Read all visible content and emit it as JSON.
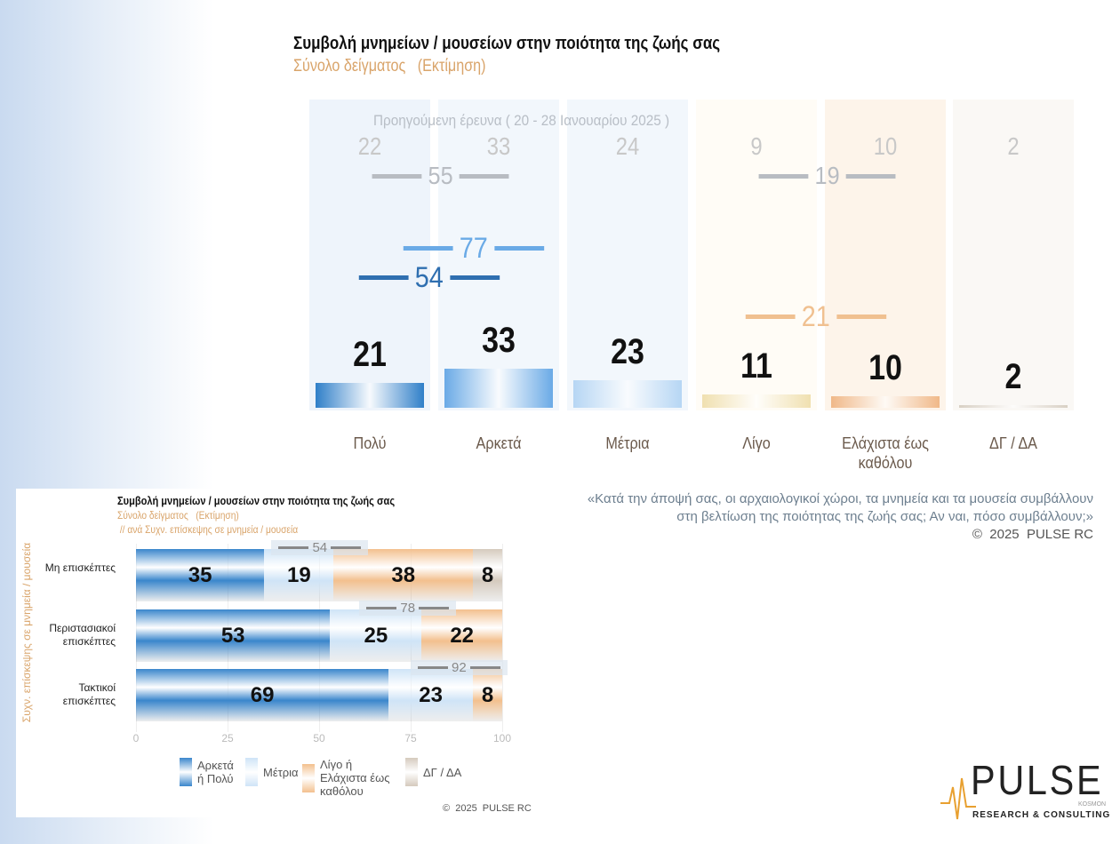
{
  "top_chart": {
    "title": "Συμβολή μνημείων / μουσείων στην ποιότητα της ζωής σας",
    "subtitle": "Σύνολο δείγματος   (Εκτίμηση)",
    "previous_label": "Προηγούμενη έρευνα ( 20 - 28 Ιανουαρίου 2025 )"
  },
  "question": {
    "line1": "«Κατά την άποψή σας, οι αρχαιολογικοί χώροι, τα μνημεία και τα μουσεία συμβάλλουν",
    "line2": "στη βελτίωση της ποιότητας της ζωής σας; Αν ναι, πόσο συμβάλλουν;»",
    "copyright": "©  2025  PULSE RC"
  },
  "bottom_chart": {
    "title": "Συμβολή μνημείων / μουσείων στην ποιότητα της ζωής σας",
    "subtitle": "Σύνολο δείγματος   (Εκτίμηση)",
    "subtitle2": " // ανά Συχν. επίσκεψης σε μνημεία / μουσεία",
    "ylabel": "Συχν. επίσκεψης σε μνημεία / μουσεία",
    "copyright": "©  2025  PULSE RC"
  },
  "logo": {
    "text": "PULSE",
    "sub": "RESEARCH & CONSULTING",
    "tag": "KOSMON"
  },
  "chart_data": [
    {
      "type": "bar",
      "title": "Συμβολή μνημείων / μουσείων στην ποιότητα της ζωής σας",
      "subtitle": "Σύνολο δείγματος   (Εκτίμηση)",
      "categories": [
        "Πολύ",
        "Αρκετά",
        "Μέτρια",
        "Λίγο",
        "Ελάχιστα έως καθόλου",
        "ΔΓ / ΔΑ"
      ],
      "values": [
        21,
        33,
        23,
        11,
        10,
        2
      ],
      "previous": [
        22,
        33,
        24,
        9,
        10,
        2
      ],
      "nets": {
        "current_positive": 54,
        "current_positive_moderate": 77,
        "current_negative": 21,
        "previous_positive": 55,
        "previous_negative": 19
      },
      "colors": [
        "#2f7fc8",
        "#6aaae6",
        "#b6d6f4",
        "#f0e0b0",
        "#f0b888",
        "#d8d0c4"
      ]
    },
    {
      "type": "bar",
      "orientation": "horizontal",
      "stacked": true,
      "title": "Συμβολή μνημείων / μουσείων στην ποιότητα της ζωής σας",
      "categories": [
        "Μη επισκέπτες",
        "Περιστασιακοί επισκέπτες",
        "Τακτικοί επισκέπτες"
      ],
      "series": [
        {
          "name": "Αρκετά ή Πολύ",
          "values": [
            35,
            53,
            69
          ],
          "color": "#3a86cc"
        },
        {
          "name": "Μέτρια",
          "values": [
            19,
            25,
            23
          ],
          "color": "#cfe4f7"
        },
        {
          "name": "Λίγο ή Ελάχιστα έως καθόλου",
          "values": [
            38,
            22,
            8
          ],
          "color": "#f3c08e"
        },
        {
          "name": "ΔΓ / ΔΑ",
          "values": [
            8,
            0,
            0
          ],
          "color": "#d5cabd"
        }
      ],
      "nets": [
        54,
        78,
        92
      ],
      "xlim": [
        0,
        100
      ],
      "xticks": [
        "0",
        "25",
        "50",
        "75",
        "100"
      ],
      "legend": "bottom"
    }
  ]
}
